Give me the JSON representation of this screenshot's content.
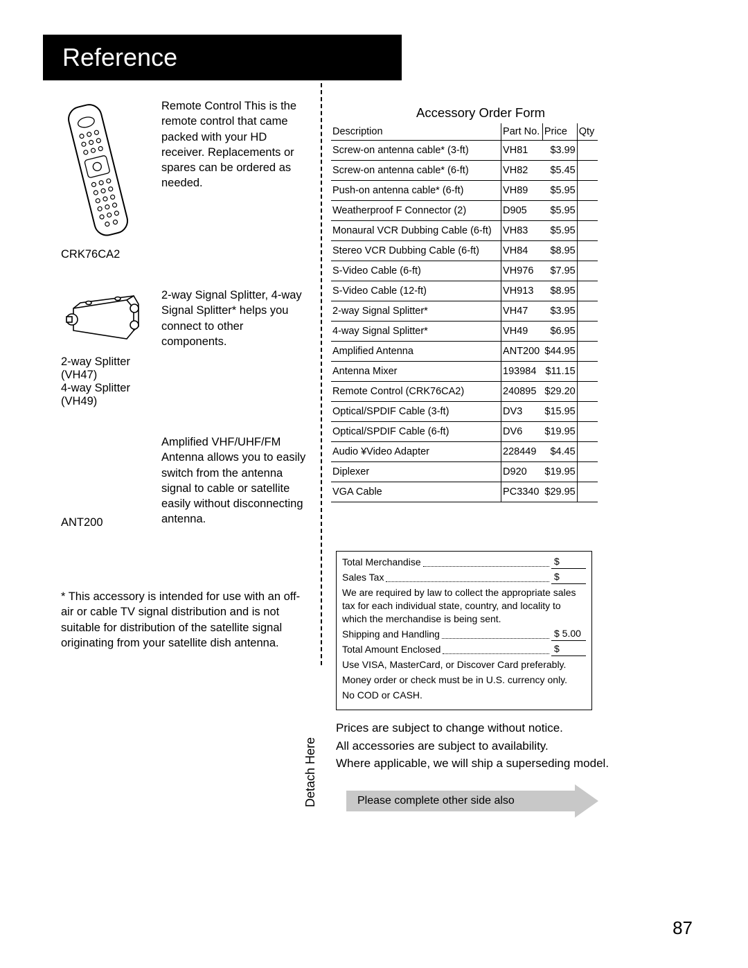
{
  "header": "Reference",
  "items": [
    {
      "label": "CRK76CA2",
      "desc": "Remote Control     This is the remote control that came packed with your HD receiver. Replacements or spares can be ordered as needed."
    },
    {
      "label": "2-way Splitter (VH47)\n4-way Splitter (VH49)",
      "desc": "2-way Signal Splitter,       4-way Signal Splitter*        helps you connect to other components."
    },
    {
      "label": "ANT200",
      "desc": "Amplified VHF/UHF/FM Antenna     allows you to easily switch from the antenna signal to cable or satellite easily without disconnecting antenna."
    }
  ],
  "footnote": "* This accessory is intended for use with an off-air or cable TV signal distribution and is not suitable for distribution of the satellite signal originating from your satellite dish antenna.",
  "formTitle": "Accessory Order Form",
  "tableHeaders": {
    "desc": "Description",
    "part": "Part No.",
    "price": "Price",
    "qty": "Qty"
  },
  "rows": [
    {
      "desc": "Screw-on antenna cable* (3-ft)",
      "part": "VH81",
      "price": "$3.99"
    },
    {
      "desc": "Screw-on antenna cable* (6-ft)",
      "part": "VH82",
      "price": "$5.45"
    },
    {
      "desc": "Push-on antenna cable* (6-ft)",
      "part": "VH89",
      "price": "$5.95"
    },
    {
      "desc": "Weatherproof    F   Connector (2)",
      "part": "D905",
      "price": "$5.95"
    },
    {
      "desc": "Monaural VCR Dubbing Cable (6-ft)",
      "part": "VH83",
      "price": "$5.95"
    },
    {
      "desc": "Stereo VCR Dubbing Cable (6-ft)",
      "part": "VH84",
      "price": "$8.95"
    },
    {
      "desc": "S-Video Cable (6-ft)",
      "part": "VH976",
      "price": "$7.95"
    },
    {
      "desc": "S-Video Cable (12-ft)",
      "part": "VH913",
      "price": "$8.95"
    },
    {
      "desc": "2-way Signal Splitter*",
      "part": "VH47",
      "price": "$3.95"
    },
    {
      "desc": "4-way Signal Splitter*",
      "part": "VH49",
      "price": "$6.95"
    },
    {
      "desc": "Amplified Antenna",
      "part": "ANT200",
      "price": "$44.95"
    },
    {
      "desc": "Antenna Mixer",
      "part": "193984",
      "price": "$11.15"
    },
    {
      "desc": "Remote Control (CRK76CA2)",
      "part": "240895",
      "price": "$29.20"
    },
    {
      "desc": "Optical/SPDIF Cable (3-ft)",
      "part": "DV3",
      "price": "$15.95"
    },
    {
      "desc": "Optical/SPDIF Cable (6-ft)",
      "part": "DV6",
      "price": "$19.95"
    },
    {
      "desc": "Audio ¥Video Adapter",
      "part": "228449",
      "price": "$4.45"
    },
    {
      "desc": "Diplexer",
      "part": "D920",
      "price": "$19.95"
    },
    {
      "desc": "VGA Cable",
      "part": "PC3340",
      "price": "$29.95"
    }
  ],
  "summary": {
    "totalMerch": "Total Merchandise",
    "salesTax": "Sales Tax",
    "taxNote": "We are required by law to collect the appropriate sales tax for each individual state, country, and locality to which the merchandise is being sent.",
    "shipping": "Shipping and Handling",
    "shippingVal": "$  5.00",
    "totalEnclosed": "Total Amount Enclosed",
    "line1": "Use VISA, MasterCard, or Discover Card preferably.",
    "line2": "Money order or check must be in U.S. currency only.",
    "line3": "No COD or CASH.",
    "dollar": "$"
  },
  "notice1": "Prices are subject to change without notice.",
  "notice2": "All accessories are subject to availability.",
  "notice3": "Where applicable, we will ship a superseding model.",
  "detach": "Detach Here",
  "arrowText": "Please complete other side also",
  "pageNum": "87"
}
